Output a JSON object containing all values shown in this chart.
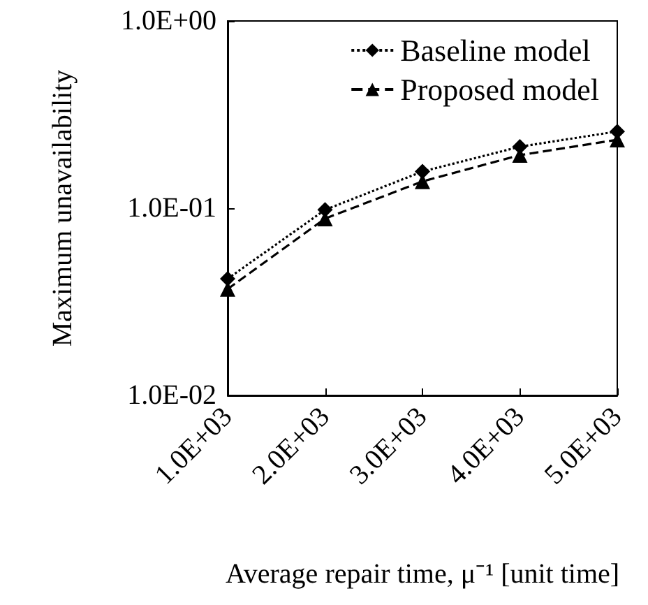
{
  "chart_data": {
    "type": "line",
    "xlabel": "Average repair time, μ⁻¹ [unit time]",
    "ylabel": "Maximum unavailability",
    "categories": [
      "1.0E+03",
      "2.0E+03",
      "3.0E+03",
      "4.0E+03",
      "5.0E+03"
    ],
    "series": [
      {
        "name": "Baseline model",
        "color": "#000000",
        "marker": "diamond",
        "line_style": "dotted",
        "values": [
          0.042,
          0.098,
          0.157,
          0.213,
          0.257
        ]
      },
      {
        "name": "Proposed model",
        "color": "#000000",
        "marker": "triangle",
        "line_style": "dashed",
        "values": [
          0.037,
          0.088,
          0.139,
          0.192,
          0.232
        ]
      }
    ],
    "log": "y",
    "ylim": [
      0.01,
      1
    ],
    "yticks": [
      {
        "value": 0.01,
        "label": "1.0E-02"
      },
      {
        "value": 0.1,
        "label": "1.0E-01"
      },
      {
        "value": 1,
        "label": "1.0E+00"
      }
    ],
    "grid": false,
    "legend": "top right"
  }
}
